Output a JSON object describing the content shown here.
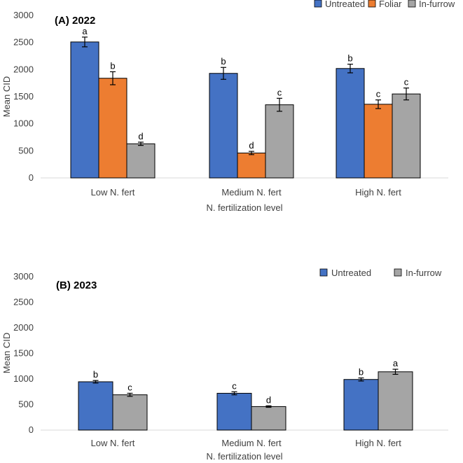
{
  "chart_data": [
    {
      "type": "bar",
      "title": "(A) 2022",
      "xlabel": "N. fertilization level",
      "ylabel": "Mean CID",
      "ylim": [
        0,
        3000
      ],
      "yticks": [
        0,
        500,
        1000,
        1500,
        2000,
        2500,
        3000
      ],
      "legend_position": "top-right",
      "categories": [
        "Low N. fert",
        "Medium N. fert",
        "High N. fert"
      ],
      "series": [
        {
          "name": "Untreated",
          "color": "#4472C4",
          "values": [
            2510,
            1930,
            2020
          ],
          "errors": [
            90,
            110,
            80
          ],
          "letters": [
            "a",
            "b",
            "b"
          ]
        },
        {
          "name": "Foliar",
          "color": "#ED7D31",
          "values": [
            1840,
            460,
            1360
          ],
          "errors": [
            120,
            30,
            80
          ],
          "letters": [
            "b",
            "d",
            "c"
          ]
        },
        {
          "name": "In-furrow",
          "color": "#A5A5A5",
          "values": [
            630,
            1350,
            1550
          ],
          "errors": [
            30,
            120,
            110
          ],
          "letters": [
            "d",
            "c",
            "c"
          ]
        }
      ]
    },
    {
      "type": "bar",
      "title": "(B) 2023",
      "xlabel": "N. fertilization level",
      "ylabel": "Mean CID",
      "ylim": [
        0,
        3000
      ],
      "yticks": [
        0,
        500,
        1000,
        1500,
        2000,
        2500,
        3000
      ],
      "legend_position": "top-right",
      "categories": [
        "Low N. fert",
        "Medium N. fert",
        "High N. fert"
      ],
      "series": [
        {
          "name": "Untreated",
          "color": "#4472C4",
          "values": [
            945,
            720,
            990
          ],
          "errors": [
            25,
            30,
            30
          ],
          "letters": [
            "b",
            "c",
            "b"
          ]
        },
        {
          "name": "In-furrow",
          "color": "#A5A5A5",
          "values": [
            690,
            460,
            1140
          ],
          "errors": [
            30,
            15,
            50
          ],
          "letters": [
            "c",
            "d",
            "a"
          ]
        }
      ]
    }
  ]
}
